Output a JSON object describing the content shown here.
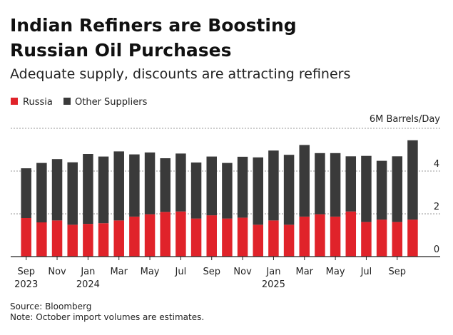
{
  "chart_data": {
    "type": "bar",
    "stacked": true,
    "title": "Indian Refiners are Boosting Russian Oil Purchases",
    "title_lines": [
      "Indian Refiners are Boosting",
      "Russian Oil Purchases"
    ],
    "subtitle": "Adequate supply, discounts are attracting refiners",
    "ylabel": "6M Barrels/Day",
    "ylim": [
      0,
      6
    ],
    "yticks": [
      "0",
      "2",
      "4"
    ],
    "grid": true,
    "legend_position": "top-left",
    "categories": [
      "Sep 2023",
      "Oct 2023",
      "Nov 2023",
      "Dec 2023",
      "Jan 2024",
      "Feb 2024",
      "Mar 2024",
      "Apr 2024",
      "May 2024",
      "Jun 2024",
      "Jul 2024",
      "Aug 2024",
      "Sep 2024",
      "Oct 2024",
      "Nov 2024",
      "Dec 2024",
      "Jan 2025",
      "Feb 2025",
      "Mar 2025",
      "Apr 2025",
      "May 2025",
      "Jun 2025",
      "Jul 2025",
      "Aug 2025",
      "Sep 2025",
      "Oct 2025"
    ],
    "xtick_labels": [
      {
        "index": 0,
        "month": "Sep",
        "year": "2023"
      },
      {
        "index": 2,
        "month": "Nov",
        "year": ""
      },
      {
        "index": 4,
        "month": "Jan",
        "year": "2024"
      },
      {
        "index": 6,
        "month": "Mar",
        "year": ""
      },
      {
        "index": 8,
        "month": "May",
        "year": ""
      },
      {
        "index": 10,
        "month": "Jul",
        "year": ""
      },
      {
        "index": 12,
        "month": "Sep",
        "year": ""
      },
      {
        "index": 14,
        "month": "Nov",
        "year": ""
      },
      {
        "index": 16,
        "month": "Jan",
        "year": "2025"
      },
      {
        "index": 18,
        "month": "Mar",
        "year": ""
      },
      {
        "index": 20,
        "month": "May",
        "year": ""
      },
      {
        "index": 22,
        "month": "Jul",
        "year": ""
      },
      {
        "index": 24,
        "month": "Sep",
        "year": ""
      }
    ],
    "series": [
      {
        "name": "Russia",
        "color": "#e0232a",
        "values": [
          1.8,
          1.6,
          1.69,
          1.49,
          1.53,
          1.56,
          1.69,
          1.87,
          1.98,
          2.09,
          2.11,
          1.78,
          1.93,
          1.78,
          1.82,
          1.49,
          1.69,
          1.49,
          1.87,
          1.98,
          1.87,
          2.11,
          1.62,
          1.73,
          1.62,
          1.73
        ]
      },
      {
        "name": "Other Suppliers",
        "color": "#3a3a3a",
        "values": [
          2.33,
          2.78,
          2.87,
          2.92,
          3.27,
          3.12,
          3.23,
          2.91,
          2.89,
          2.51,
          2.71,
          2.62,
          2.75,
          2.6,
          2.85,
          3.15,
          3.27,
          3.27,
          3.35,
          2.86,
          2.97,
          2.58,
          3.09,
          2.75,
          3.07,
          3.71
        ]
      }
    ]
  },
  "footer": {
    "source": "Source: Bloomberg",
    "note": "Note: October import volumes are estimates."
  }
}
